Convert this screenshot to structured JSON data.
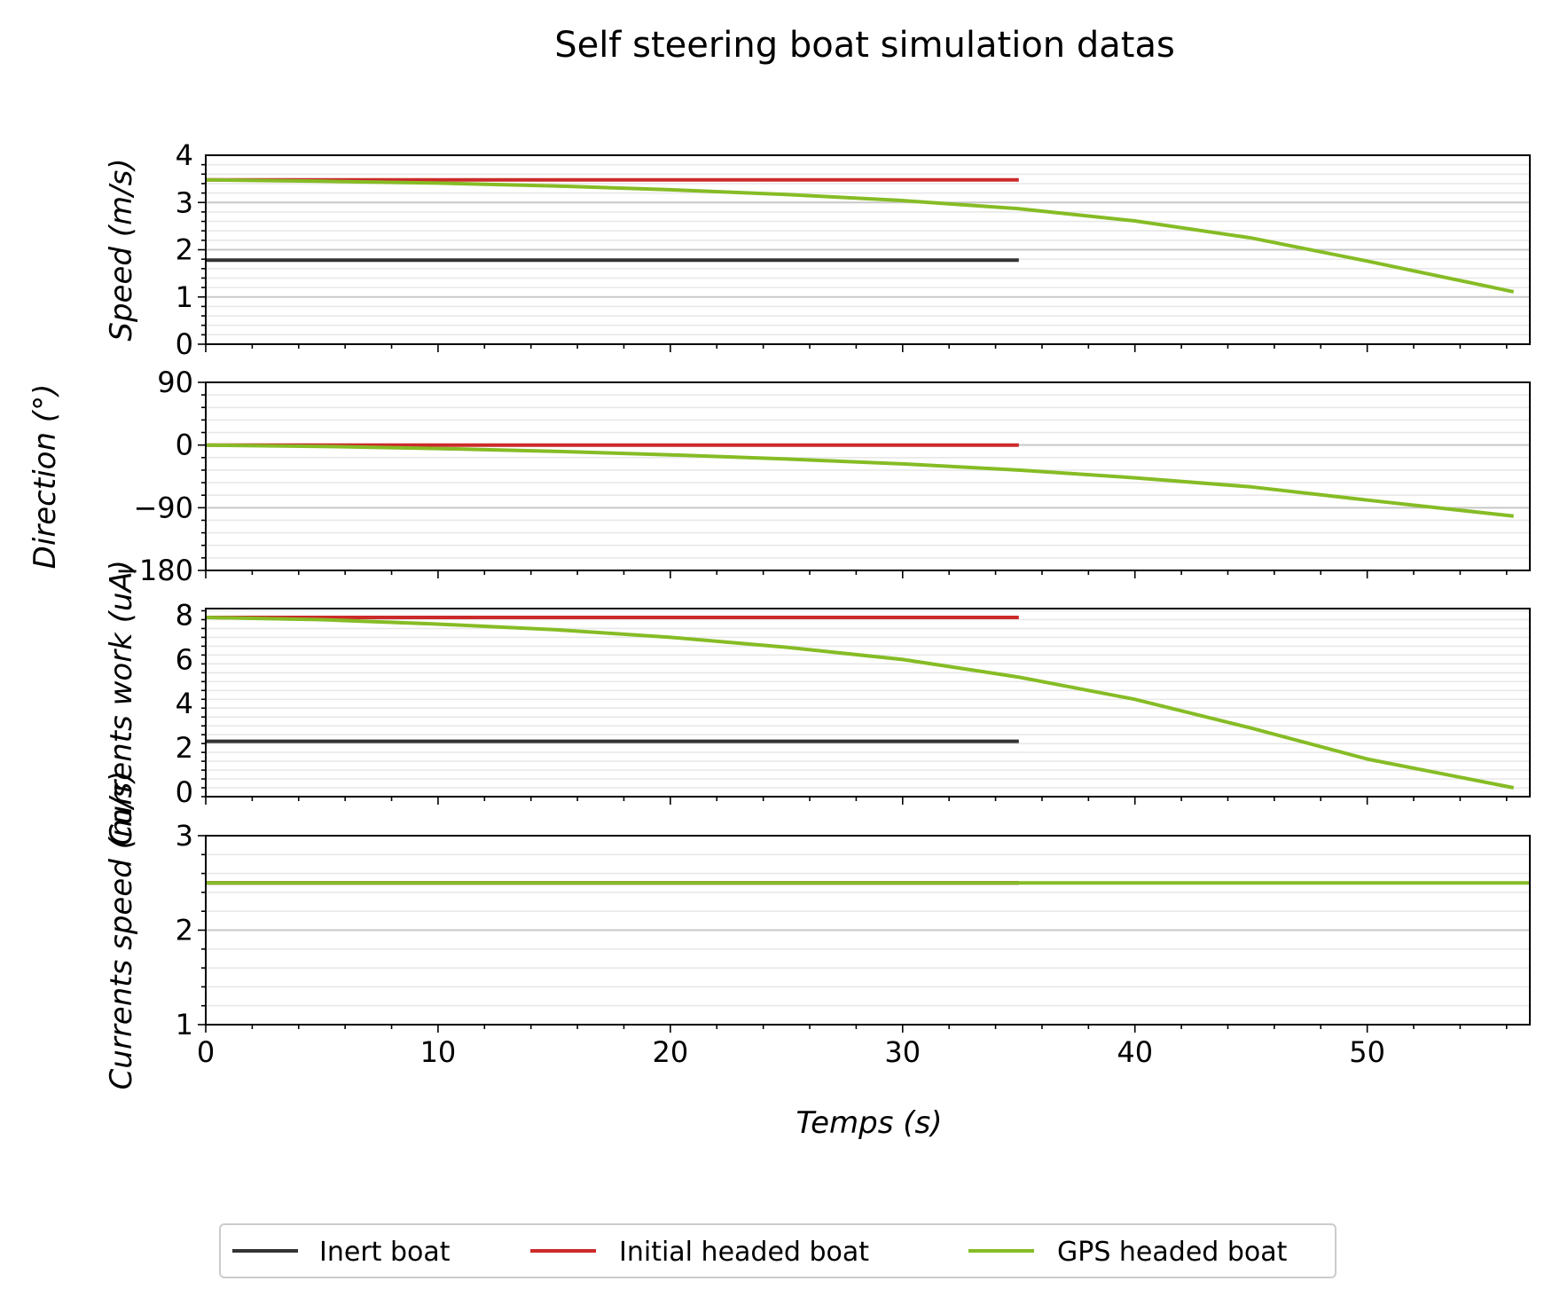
{
  "chart_data": {
    "type": "line",
    "title": "Self steering boat simulation datas",
    "xlabel": "Temps (s)",
    "xlim": [
      0,
      57
    ],
    "xticks": [
      0,
      10,
      20,
      30,
      40,
      50
    ],
    "shared_x": true,
    "grid": true,
    "legend": {
      "placement": "bottom-center",
      "entries": [
        {
          "name": "Inert boat",
          "color": "#333333"
        },
        {
          "name": "Initial headed boat",
          "color": "#cc2a2a"
        },
        {
          "name": "GPS headed boat",
          "color": "#86bc25"
        }
      ]
    },
    "panels": [
      {
        "ylabel": "Speed (m/s)",
        "ylim": [
          0,
          4
        ],
        "yticks": [
          0,
          1,
          2,
          3,
          4
        ],
        "series": [
          {
            "name": "Inert boat",
            "x": [
              0,
              35
            ],
            "y": [
              1.78,
              1.78
            ]
          },
          {
            "name": "Initial headed boat",
            "x": [
              0,
              35
            ],
            "y": [
              3.48,
              3.48
            ]
          },
          {
            "name": "GPS headed boat",
            "x": [
              0,
              5,
              10,
              15,
              20,
              25,
              30,
              35,
              40,
              45,
              50,
              56.3
            ],
            "y": [
              3.48,
              3.45,
              3.41,
              3.35,
              3.27,
              3.17,
              3.04,
              2.87,
              2.61,
              2.25,
              1.76,
              1.11
            ]
          }
        ]
      },
      {
        "ylabel": "Direction (°)",
        "ylim": [
          -180,
          90
        ],
        "yticks": [
          90,
          0,
          -90,
          -180
        ],
        "yticklabels": [
          "90",
          "0",
          "−90",
          "−180"
        ],
        "series": [
          {
            "name": "Initial headed boat",
            "x": [
              0,
              35
            ],
            "y": [
              0,
              0
            ]
          },
          {
            "name": "GPS headed boat",
            "x": [
              0,
              5,
              10,
              15,
              20,
              25,
              30,
              35,
              40,
              45,
              50,
              56.3
            ],
            "y": [
              0,
              -2,
              -5,
              -9,
              -14,
              -20,
              -27,
              -36,
              -47,
              -60,
              -79,
              -102
            ]
          }
        ]
      },
      {
        "ylabel": "Currents work (uA)",
        "ylim": [
          -0.2,
          8.3
        ],
        "yticks": [
          0,
          2,
          4,
          6,
          8
        ],
        "series": [
          {
            "name": "Inert boat",
            "x": [
              0,
              35
            ],
            "y": [
              2.3,
              2.3
            ]
          },
          {
            "name": "Initial headed boat",
            "x": [
              0,
              35
            ],
            "y": [
              7.9,
              7.9
            ]
          },
          {
            "name": "GPS headed boat",
            "x": [
              0,
              5,
              10,
              15,
              20,
              25,
              30,
              35,
              40,
              45,
              50,
              56.3
            ],
            "y": [
              7.9,
              7.8,
              7.6,
              7.35,
              7.0,
              6.55,
              6.0,
              5.2,
              4.2,
              2.9,
              1.5,
              0.2
            ]
          }
        ]
      },
      {
        "ylabel": "Currents speed (m/s)",
        "ylim": [
          1,
          3
        ],
        "yticks": [
          1,
          2,
          3
        ],
        "series": [
          {
            "name": "Inert boat",
            "x": [
              0,
              35
            ],
            "y": [
              2.5,
              2.5
            ]
          },
          {
            "name": "Initial headed boat",
            "x": [
              0,
              35
            ],
            "y": [
              2.5,
              2.5
            ]
          },
          {
            "name": "GPS headed boat",
            "x": [
              0,
              57
            ],
            "y": [
              2.5,
              2.5
            ]
          }
        ]
      }
    ]
  }
}
